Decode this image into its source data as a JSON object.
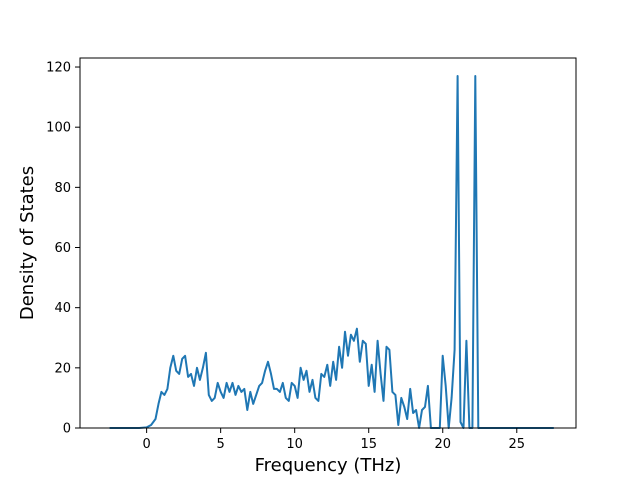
{
  "chart_data": {
    "type": "line",
    "xlabel": "Frequency (THz)",
    "ylabel": "Density of States",
    "xlim": [
      -4.5,
      29
    ],
    "ylim": [
      0,
      123
    ],
    "xticks": [
      0,
      5,
      10,
      15,
      20,
      25
    ],
    "yticks": [
      0,
      20,
      40,
      60,
      80,
      100,
      120
    ],
    "grid": false,
    "series": [
      {
        "color": "#1f77b4",
        "x": [
          -2.5,
          -2.0,
          -1.5,
          -1.0,
          -0.5,
          0.0,
          0.3,
          0.6,
          0.8,
          1.0,
          1.2,
          1.4,
          1.6,
          1.8,
          2.0,
          2.2,
          2.4,
          2.6,
          2.8,
          3.0,
          3.2,
          3.4,
          3.6,
          3.8,
          4.0,
          4.2,
          4.4,
          4.6,
          4.8,
          5.0,
          5.2,
          5.4,
          5.6,
          5.8,
          6.0,
          6.2,
          6.4,
          6.6,
          6.8,
          7.0,
          7.2,
          7.4,
          7.6,
          7.8,
          8.0,
          8.2,
          8.4,
          8.6,
          8.8,
          9.0,
          9.2,
          9.4,
          9.6,
          9.8,
          10.0,
          10.2,
          10.4,
          10.6,
          10.8,
          11.0,
          11.2,
          11.4,
          11.6,
          11.8,
          12.0,
          12.2,
          12.4,
          12.6,
          12.8,
          13.0,
          13.2,
          13.4,
          13.6,
          13.8,
          14.0,
          14.2,
          14.4,
          14.6,
          14.8,
          15.0,
          15.2,
          15.4,
          15.6,
          15.8,
          16.0,
          16.2,
          16.4,
          16.6,
          16.8,
          17.0,
          17.2,
          17.4,
          17.6,
          17.8,
          18.0,
          18.2,
          18.4,
          18.6,
          18.8,
          19.0,
          19.2,
          19.4,
          19.6,
          19.8,
          20.0,
          20.2,
          20.4,
          20.6,
          20.8,
          21.0,
          21.2,
          21.4,
          21.6,
          21.8,
          22.0,
          22.2,
          22.4,
          22.6,
          22.8,
          23.0,
          23.5,
          24.0,
          25.0,
          26.0,
          27.5
        ],
        "y": [
          0,
          0,
          0,
          0,
          0,
          0.2,
          1,
          3,
          8,
          12,
          11,
          13,
          20,
          24,
          19,
          18,
          23,
          24,
          17,
          18,
          14,
          20,
          16,
          20,
          25,
          11,
          9,
          10,
          15,
          12,
          10,
          15,
          12,
          15,
          11,
          14,
          12,
          13,
          6,
          12,
          8,
          11,
          14,
          15,
          19,
          22,
          18,
          13,
          13,
          12,
          15,
          10,
          9,
          15,
          14,
          10,
          20,
          16,
          19,
          12,
          16,
          10,
          9,
          18,
          17,
          21,
          14,
          22,
          16,
          27,
          20,
          32,
          24,
          31,
          29,
          33,
          22,
          29,
          28,
          14,
          21,
          12,
          29,
          18,
          9,
          27,
          26,
          12,
          11,
          1,
          10,
          7,
          3,
          13,
          5,
          6,
          0,
          6,
          7,
          14,
          0,
          0,
          0,
          0,
          24,
          14,
          0,
          10,
          26,
          117,
          2,
          0,
          29,
          0,
          0,
          117,
          0,
          0,
          0,
          0,
          0,
          0,
          0,
          0,
          0
        ]
      }
    ]
  }
}
